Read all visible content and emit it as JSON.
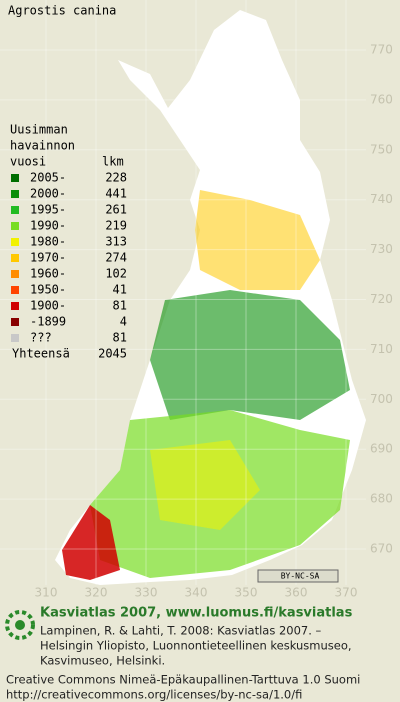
{
  "title": "Agrostis canina",
  "legend": {
    "heading": [
      "Uusimman",
      "havainnon"
    ],
    "col_period": "vuosi",
    "col_count": "lkm",
    "rows": [
      {
        "period": "2005-",
        "count": 228,
        "color": "#006e00"
      },
      {
        "period": "2000-",
        "count": 441,
        "color": "#0a8f0a"
      },
      {
        "period": "1995-",
        "count": 261,
        "color": "#22bb22"
      },
      {
        "period": "1990-",
        "count": 219,
        "color": "#77dd22"
      },
      {
        "period": "1980-",
        "count": 313,
        "color": "#f2f200"
      },
      {
        "period": "1970-",
        "count": 274,
        "color": "#ffc800"
      },
      {
        "period": "1960-",
        "count": 102,
        "color": "#ff8c00"
      },
      {
        "period": "1950-",
        "count": 41,
        "color": "#ff4400"
      },
      {
        "period": "1900-",
        "count": 81,
        "color": "#d00000"
      },
      {
        "period": "-1899",
        "count": 4,
        "color": "#880000"
      },
      {
        "period": "???",
        "count": 81,
        "color": "#c8c8c8"
      }
    ],
    "total_label": "Yhteensä",
    "total": 2045
  },
  "grid": {
    "y_labels": [
      770,
      760,
      750,
      740,
      730,
      720,
      710,
      700,
      690,
      680,
      670
    ],
    "x_labels": [
      310,
      320,
      330,
      340,
      350,
      360,
      370
    ]
  },
  "license_badge": "BY-NC-SA",
  "footer": {
    "headline": "Kasviatlas 2007, www.luomus.fi/kasviatlas",
    "citation": [
      "Lampinen, R. & Lahti, T. 2008: Kasviatlas 2007. –",
      "Helsingin Yliopisto, Luonnontieteellinen keskusmuseo,",
      "Kasvimuseo, Helsinki."
    ],
    "license": [
      "Creative Commons Nimeä-Epäkaupallinen-Tarttuva 1.0 Suomi",
      "http://creativecommons.org/licenses/by-nc-sa/1.0/fi"
    ]
  }
}
